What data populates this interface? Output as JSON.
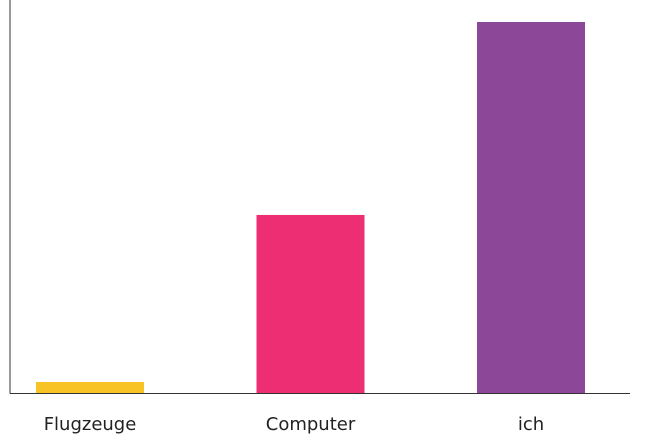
{
  "chart_data": {
    "type": "bar",
    "categories": [
      "Flugzeuge",
      "Computer",
      "ich"
    ],
    "values": [
      2.8,
      45.3,
      94.4
    ],
    "colors": [
      "#f7c325",
      "#ee2e72",
      "#8c4799"
    ],
    "ylim": [
      0,
      100
    ]
  }
}
